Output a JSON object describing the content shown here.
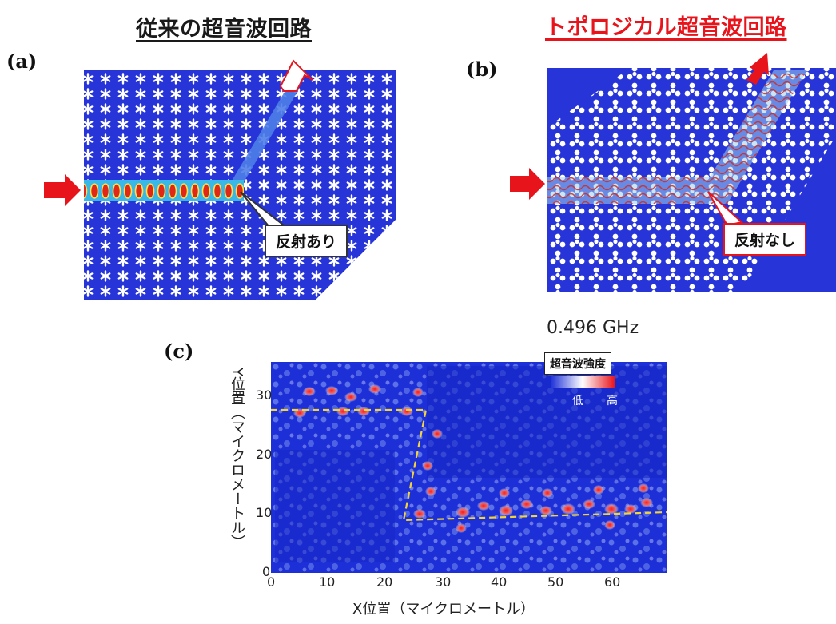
{
  "panel_a": {
    "title": "従来の超音波回路",
    "label": "(a)",
    "callout": "反射あり"
  },
  "panel_b": {
    "title": "トポロジカル超音波回路",
    "label": "(b)",
    "callout": "反射なし"
  },
  "panel_c": {
    "label": "(c)",
    "frequency": "0.496 GHz",
    "legend_title": "超音波強度",
    "legend_low": "低",
    "legend_high": "高",
    "xlabel": "X位置（マイクロメートル）",
    "ylabel": "Y位置（マイクロメートル）",
    "x_ticks": [
      "0",
      "10",
      "20",
      "30",
      "40",
      "50",
      "60"
    ],
    "y_ticks": [
      "0",
      "10",
      "20",
      "30"
    ]
  },
  "colors": {
    "background_blue": "#1f2fd6",
    "field_red": "#e8141c",
    "path_yellow": "#f2d33a"
  }
}
